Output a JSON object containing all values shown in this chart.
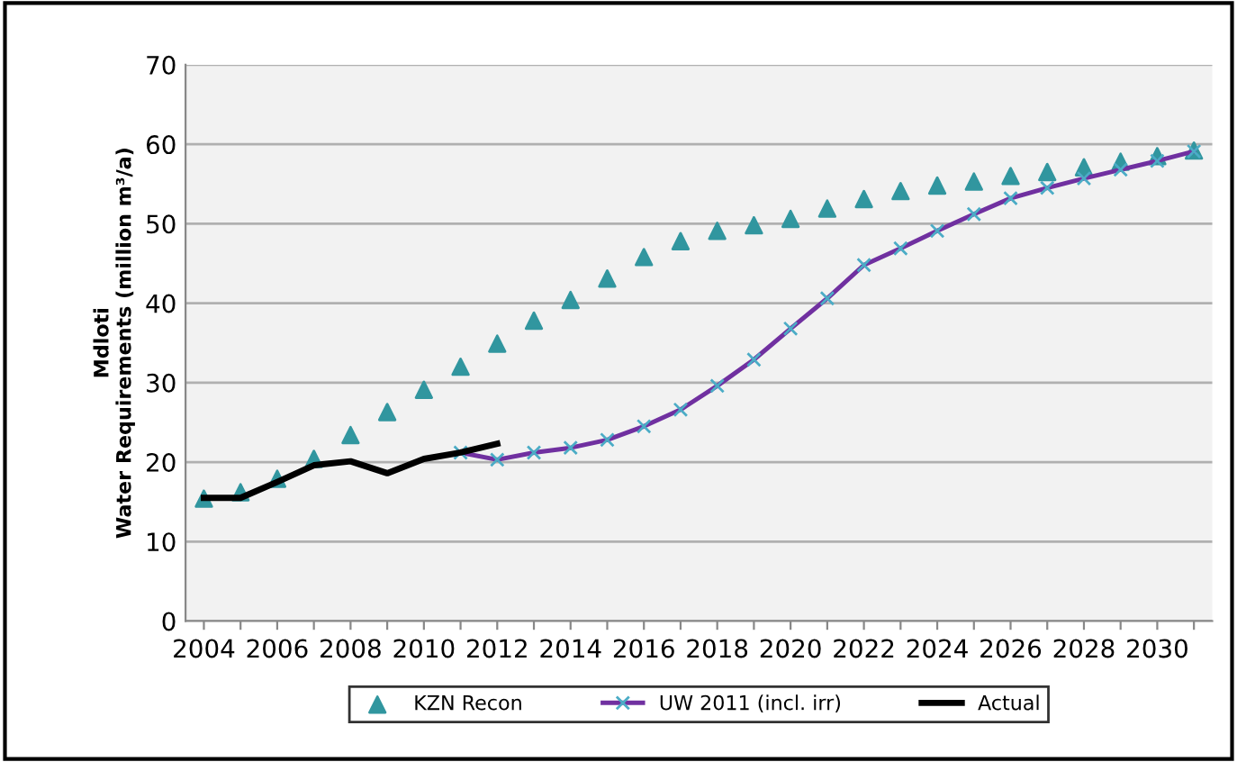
{
  "chart_data": {
    "type": "line",
    "ylabel": "Mdloti\nWater Requirements (million m³/a)",
    "categories": [
      "2004",
      null,
      "2006",
      null,
      "2008",
      null,
      "2010",
      null,
      "2012",
      null,
      "2014",
      null,
      "2016",
      null,
      "2018",
      null,
      "2020",
      null,
      "2022",
      null,
      "2024",
      null,
      "2026",
      null,
      "2028",
      null,
      "2030",
      null
    ],
    "series": [
      {
        "name": "KZN Recon",
        "type": "scatter",
        "marker": "triangle",
        "color": "#31969f",
        "values": [
          15.4,
          16.2,
          17.9,
          20.4,
          23.4,
          26.3,
          29.1,
          32.0,
          34.9,
          37.8,
          40.4,
          43.1,
          45.8,
          47.8,
          49.1,
          49.8,
          50.6,
          51.9,
          53.1,
          54.1,
          54.8,
          55.3,
          56.0,
          56.5,
          57.1,
          57.8,
          58.5,
          59.2
        ]
      },
      {
        "name": "UW 2011 (incl. irr)",
        "marker": "cross",
        "color": "#7030a0",
        "values": [
          null,
          null,
          null,
          null,
          null,
          null,
          null,
          21.2,
          20.3,
          21.2,
          21.8,
          22.8,
          24.5,
          26.6,
          29.6,
          32.9,
          36.8,
          40.6,
          44.8,
          46.9,
          49.1,
          51.2,
          53.2,
          54.5,
          55.7,
          56.8,
          57.9,
          59.1
        ]
      },
      {
        "name": "Actual",
        "marker": "none",
        "color": "#000000",
        "values": [
          15.5,
          15.5,
          17.5,
          19.6,
          20.1,
          18.6,
          20.4,
          21.2,
          22.3,
          null,
          null,
          null,
          null,
          null,
          null,
          null,
          null,
          null,
          null,
          null,
          null,
          null,
          null,
          null,
          null,
          null,
          null,
          null
        ]
      }
    ],
    "ylim": [
      0,
      70
    ],
    "yticks": [
      0,
      10,
      20,
      30,
      40,
      50,
      60,
      70
    ],
    "grid": "y",
    "legend": "bottom"
  }
}
